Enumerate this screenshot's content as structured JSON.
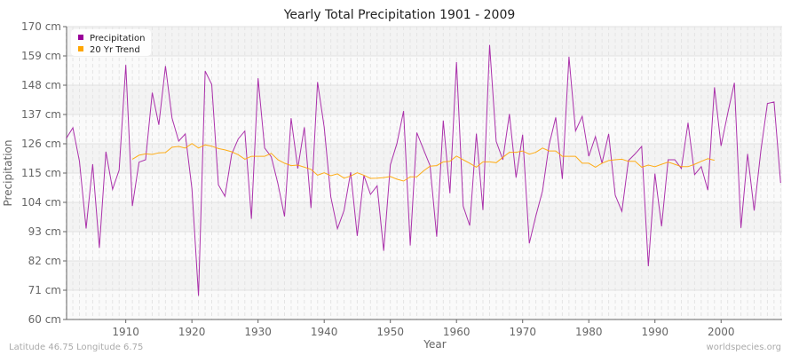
{
  "chart_data": {
    "type": "line",
    "title": "Yearly Total Precipitation 1901 - 2009",
    "xlabel": "Year",
    "ylabel": "Precipitation",
    "xlim": [
      1901,
      2009
    ],
    "ylim": [
      60,
      170
    ],
    "y_ticks": [
      "60 cm",
      "71 cm",
      "82 cm",
      "93 cm",
      "104 cm",
      "115 cm",
      "126 cm",
      "137 cm",
      "148 cm",
      "159 cm",
      "170 cm"
    ],
    "y_tick_values": [
      60,
      71,
      82,
      93,
      104,
      115,
      126,
      137,
      148,
      159,
      170
    ],
    "x_ticks": [
      "1910",
      "1920",
      "1930",
      "1940",
      "1950",
      "1960",
      "1970",
      "1980",
      "1990",
      "2000"
    ],
    "grid": true,
    "legend_position": "top-left",
    "series": [
      {
        "name": "Precipitation",
        "color": "#990099",
        "start_year": 1901,
        "values": [
          128,
          132,
          119.4,
          94.2,
          118.3,
          86.9,
          123,
          108.9,
          116.1,
          155.6,
          102.6,
          119.1,
          120,
          145.2,
          133.1,
          155.2,
          135.6,
          127,
          129.7,
          109.1,
          68.9,
          153.3,
          148.3,
          110.6,
          106.3,
          122,
          127.8,
          130.8,
          97.8,
          150.6,
          124.4,
          121.1,
          111.1,
          98.7,
          135.6,
          116.7,
          132.2,
          101.9,
          149.2,
          132.2,
          106.1,
          94.1,
          100.9,
          115.3,
          91.4,
          114.1,
          107,
          110.2,
          85.8,
          118.1,
          126.1,
          138.3,
          87.8,
          130.2,
          123.9,
          117.8,
          91.1,
          134.7,
          107.4,
          156.7,
          102.6,
          95.3,
          129.8,
          101.1,
          163.1,
          126.9,
          120,
          137.2,
          113.3,
          129.4,
          88.6,
          98.9,
          108.3,
          125.6,
          135.9,
          112.8,
          158.7,
          130.8,
          136.3,
          121.3,
          128.7,
          118.7,
          129.7,
          106.7,
          100.6,
          119.7,
          122.2,
          125,
          80,
          114.8,
          95,
          120,
          120,
          116.7,
          133.9,
          114.4,
          117.4,
          108.6,
          147.2,
          125.2,
          137.4,
          148.9,
          94.4,
          122.2,
          100.9,
          123.3,
          141.1,
          141.7,
          111.3
        ]
      },
      {
        "name": "20 Yr Trend",
        "color": "#ffa500",
        "start_year": 1911,
        "values": [
          120.2,
          121.7,
          122.2,
          122,
          122.6,
          122.7,
          124.7,
          125,
          124.4,
          126.1,
          124.4,
          125.6,
          125.1,
          124.2,
          123.7,
          123,
          121.9,
          120.2,
          121.3,
          121.3,
          121.3,
          122.4,
          120,
          118.7,
          117.8,
          118,
          117.2,
          116.4,
          114.2,
          115.1,
          114,
          114.7,
          113.1,
          113.9,
          115.1,
          114.2,
          113,
          113.1,
          113.3,
          113.7,
          112.7,
          112,
          113.6,
          113.6,
          115.8,
          117.6,
          117.8,
          119.2,
          119.4,
          121.4,
          120,
          118.7,
          117.2,
          119.2,
          119.2,
          118.9,
          120.9,
          122.8,
          122.8,
          123.3,
          122.1,
          122.8,
          124.4,
          123.3,
          123.3,
          121.3,
          121.3,
          121.3,
          118.7,
          118.7,
          117.2,
          118.7,
          119.7,
          120,
          120.2,
          119.4,
          119.4,
          117.2,
          118,
          117.4,
          118.3,
          119.1,
          118.3,
          117.4,
          117.4,
          118.3,
          119.4,
          120.4,
          119.8
        ]
      }
    ]
  },
  "footer": {
    "location": "Latitude 46.75 Longitude 6.75",
    "source": "worldspecies.org"
  }
}
